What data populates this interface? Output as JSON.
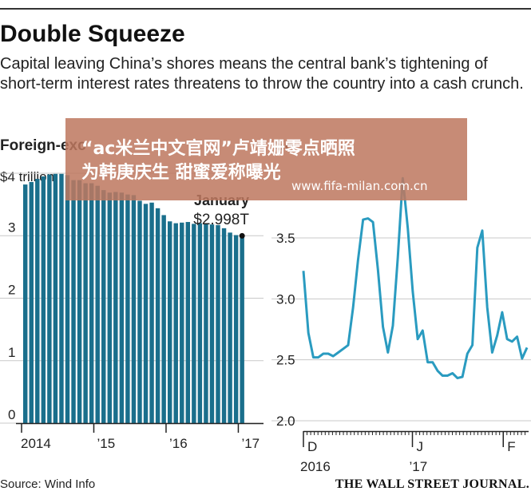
{
  "header": {
    "title": "Double Squeeze",
    "subtitle": "Capital leaving China’s shores means the central bank’s tightening of short-term interest rates threatens to throw the country into a cash crunch."
  },
  "footer": {
    "source": "Source: Wind Info",
    "publisher": "THE WALL STREET JOURNAL."
  },
  "watermark": {
    "line1": "“ac米兰中文官网”卢靖姗零点晒照",
    "line2": "为韩庚庆生 甜蜜爱称曝光",
    "url": "www.fifa-milan.com.cn",
    "color": "#be785f"
  },
  "colors": {
    "bar": "#1a6f8c",
    "line": "#2a9bc0",
    "grid": "#c8c8c8",
    "axis": "#222222"
  },
  "chart_data": [
    {
      "type": "bar",
      "title": "Foreign-exc",
      "ylabel_top": "$4 trillion",
      "yticks": [
        0,
        1,
        2,
        3,
        4
      ],
      "ytick_labels": [
        "0",
        "1",
        "2",
        "3",
        ""
      ],
      "ylim": [
        0,
        4
      ],
      "xtick_labels": [
        "2014",
        "’15",
        "’16",
        "’17"
      ],
      "xtick_bar_index": [
        0,
        12,
        24,
        36
      ],
      "annotation": {
        "label1": "January",
        "label2": "$2.998T",
        "bar_index": 36,
        "value": 2.998
      },
      "values": [
        3.82,
        3.86,
        3.91,
        3.95,
        3.98,
        3.99,
        3.99,
        3.97,
        3.89,
        3.89,
        3.84,
        3.84,
        3.8,
        3.73,
        3.69,
        3.7,
        3.69,
        3.66,
        3.65,
        3.56,
        3.51,
        3.53,
        3.44,
        3.33,
        3.23,
        3.2,
        3.21,
        3.22,
        3.19,
        3.2,
        3.2,
        3.18,
        3.17,
        3.12,
        3.05,
        3.01,
        2.998
      ]
    },
    {
      "type": "line",
      "title": "Se",
      "yticks": [
        2.0,
        2.5,
        3.0,
        3.5
      ],
      "ytick_labels": [
        "2.0",
        "2.5",
        "3.0",
        "3.5"
      ],
      "ylim": [
        2.0,
        4.0
      ],
      "xtick_labels": [
        {
          "label": "D",
          "sub": "2016"
        },
        {
          "label": "J",
          "sub": "’17"
        },
        {
          "label": "F",
          "sub": ""
        }
      ],
      "x_month_starts": [
        0,
        30,
        55
      ],
      "values": [
        3.23,
        2.72,
        2.52,
        2.52,
        2.55,
        2.55,
        2.53,
        2.56,
        2.59,
        2.62,
        2.93,
        3.32,
        3.65,
        3.66,
        3.63,
        3.24,
        2.77,
        2.56,
        2.78,
        3.34,
        3.99,
        3.58,
        3.06,
        2.67,
        2.74,
        2.48,
        2.48,
        2.41,
        2.37,
        2.37,
        2.39,
        2.35,
        2.36,
        2.55,
        2.62,
        3.42,
        3.56,
        2.93,
        2.56,
        2.7,
        2.89,
        2.67,
        2.65,
        2.69,
        2.51,
        2.6
      ]
    }
  ]
}
